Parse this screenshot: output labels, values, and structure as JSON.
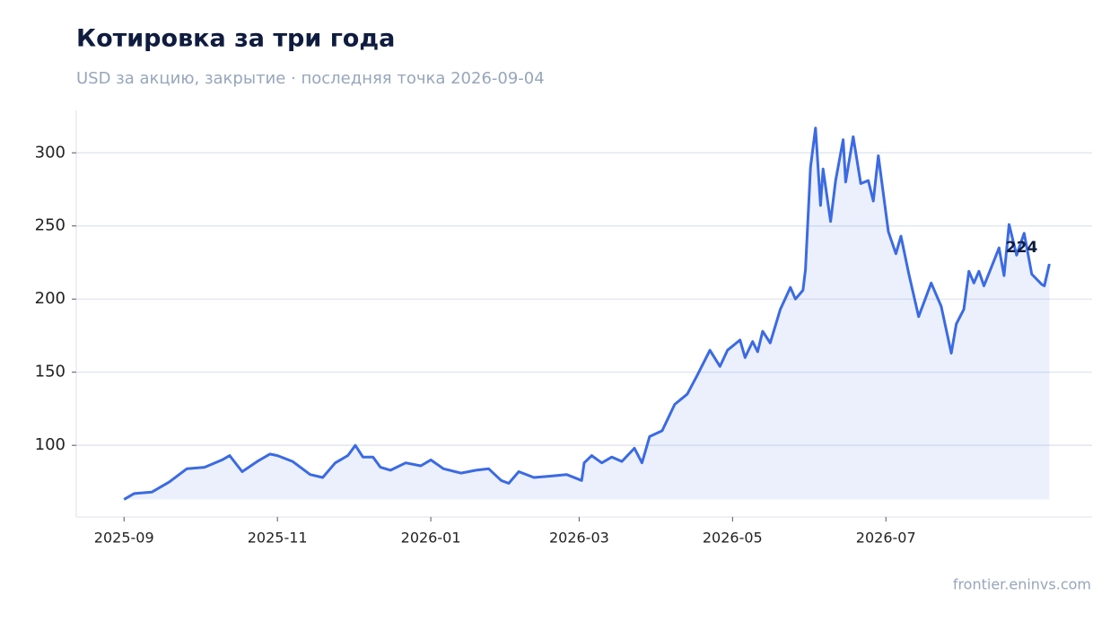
{
  "chart_data": {
    "type": "line",
    "title": "Котировка за три года",
    "subtitle": "USD за акцию, закрытие · последняя точка 2026-09-04",
    "source": "frontier.eninvs.com",
    "x": [
      "2025-09-01",
      "2025-09-05",
      "2025-09-12",
      "2025-09-19",
      "2025-09-26",
      "2025-10-03",
      "2025-10-10",
      "2025-10-13",
      "2025-10-18",
      "2025-10-24",
      "2025-10-29",
      "2025-11-01",
      "2025-11-07",
      "2025-11-14",
      "2025-11-19",
      "2025-11-24",
      "2025-11-29",
      "2025-12-02",
      "2025-12-05",
      "2025-12-09",
      "2025-12-12",
      "2025-12-16",
      "2025-12-22",
      "2025-12-28",
      "2026-01-01",
      "2026-01-06",
      "2026-01-13",
      "2026-01-19",
      "2026-01-24",
      "2026-01-29",
      "2026-02-01",
      "2026-02-05",
      "2026-02-11",
      "2026-02-18",
      "2026-02-24",
      "2026-03-02",
      "2026-03-03",
      "2026-03-06",
      "2026-03-10",
      "2026-03-14",
      "2026-03-18",
      "2026-03-23",
      "2026-03-26",
      "2026-03-29",
      "2026-04-03",
      "2026-04-08",
      "2026-04-13",
      "2026-04-17",
      "2026-04-22",
      "2026-04-26",
      "2026-04-29",
      "2026-05-04",
      "2026-05-06",
      "2026-05-09",
      "2026-05-11",
      "2026-05-13",
      "2026-05-16",
      "2026-05-20",
      "2026-05-24",
      "2026-05-26",
      "2026-05-29",
      "2026-05-30",
      "2026-06-01",
      "2026-06-03",
      "2026-06-05",
      "2026-06-06",
      "2026-06-09",
      "2026-06-11",
      "2026-06-14",
      "2026-06-15",
      "2026-06-18",
      "2026-06-21",
      "2026-06-24",
      "2026-06-26",
      "2026-06-28",
      "2026-07-02",
      "2026-07-05",
      "2026-07-07",
      "2026-07-10",
      "2026-07-14",
      "2026-07-19",
      "2026-07-23",
      "2026-07-27",
      "2026-07-29",
      "2026-08-01",
      "2026-08-03",
      "2026-08-05",
      "2026-08-07",
      "2026-08-09",
      "2026-08-12",
      "2026-08-15",
      "2026-08-17",
      "2026-08-19",
      "2026-08-22",
      "2026-08-25",
      "2026-08-28",
      "2026-09-01",
      "2026-09-02",
      "2026-09-04"
    ],
    "series": [
      {
        "name": "Close",
        "color": "#3b6ae3",
        "values": [
          63,
          67,
          68,
          75,
          84,
          85,
          90,
          93,
          82,
          89,
          94,
          93,
          89,
          80,
          78,
          88,
          93,
          100,
          92,
          92,
          85,
          83,
          88,
          86,
          90,
          84,
          81,
          83,
          84,
          76,
          74,
          82,
          78,
          79,
          80,
          76,
          88,
          93,
          88,
          92,
          89,
          98,
          88,
          106,
          110,
          128,
          135,
          148,
          165,
          154,
          165,
          172,
          160,
          171,
          164,
          178,
          170,
          193,
          208,
          200,
          206,
          220,
          290,
          317,
          264,
          289,
          253,
          281,
          309,
          280,
          311,
          279,
          281,
          267,
          298,
          246,
          231,
          243,
          218,
          188,
          211,
          195,
          163,
          183,
          193,
          219,
          211,
          219,
          209,
          222,
          235,
          216,
          251,
          230,
          245,
          217,
          210,
          209,
          224
        ]
      }
    ],
    "annotation": {
      "text": "224",
      "x": "2026-08-24",
      "y": 235
    },
    "xlim": [
      "2025-08-13",
      "2026-09-21"
    ],
    "xticks": [
      {
        "value": "2025-09-01",
        "label": "2025-09"
      },
      {
        "value": "2025-11-01",
        "label": "2025-11"
      },
      {
        "value": "2026-01-01",
        "label": "2026-01"
      },
      {
        "value": "2026-03-01",
        "label": "2026-03"
      },
      {
        "value": "2026-05-01",
        "label": "2026-05"
      },
      {
        "value": "2026-07-01",
        "label": "2026-07"
      }
    ],
    "ylim": [
      51,
      329
    ],
    "yticks": [
      100,
      150,
      200,
      250,
      300
    ],
    "grid": true
  }
}
